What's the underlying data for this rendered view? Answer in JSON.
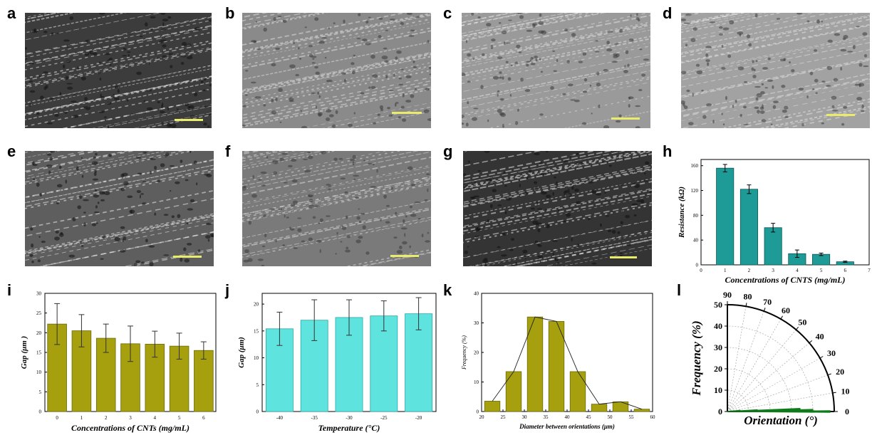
{
  "panels": {
    "a": {
      "letter": "a"
    },
    "b": {
      "letter": "b"
    },
    "c": {
      "letter": "c"
    },
    "d": {
      "letter": "d"
    },
    "e": {
      "letter": "e"
    },
    "f": {
      "letter": "f"
    },
    "g": {
      "letter": "g"
    },
    "h": {
      "letter": "h"
    },
    "i": {
      "letter": "i"
    },
    "j": {
      "letter": "j"
    },
    "k": {
      "letter": "k"
    },
    "l": {
      "letter": "l"
    }
  },
  "sem_tints": {
    "a": "#3c3c3c",
    "b": "#8a8a8a",
    "c": "#9a9a9a",
    "d": "#a2a2a2",
    "e": "#5e5e5e",
    "f": "#7a7a7a",
    "g": "#343434"
  },
  "colors": {
    "teal": "#1e9b96",
    "olive": "#a6a00e",
    "cyan": "#5fe3df",
    "green": "#0f7a1a"
  },
  "chart_data": [
    {
      "id": "h",
      "type": "bar",
      "x": [
        1,
        2,
        3,
        4,
        5,
        6
      ],
      "values": [
        156,
        122,
        60,
        18,
        17,
        5
      ],
      "errors": [
        6,
        7,
        7,
        6,
        2,
        1
      ],
      "xlim": [
        0,
        7
      ],
      "xticks": [
        "0",
        "1",
        "2",
        "3",
        "4",
        "5",
        "6",
        "7"
      ],
      "ylim": [
        0,
        170
      ],
      "yticks": [
        "0",
        "40",
        "80",
        "120",
        "160"
      ],
      "xlabel": "Concentrations of CNTS (mg/mL)",
      "ylabel": "Resistance (kΩ)",
      "color": "#1e9b96"
    },
    {
      "id": "i",
      "type": "bar",
      "categories": [
        "0",
        "1",
        "2",
        "3",
        "4",
        "5",
        "6"
      ],
      "values": [
        22.2,
        20.5,
        18.6,
        17.2,
        17.1,
        16.6,
        15.5
      ],
      "errors": [
        5.2,
        4.1,
        3.6,
        4.5,
        3.3,
        3.3,
        2.2
      ],
      "ylim": [
        0,
        30
      ],
      "yticks": [
        "0",
        "5",
        "10",
        "15",
        "20",
        "25",
        "30"
      ],
      "xlabel": "Concentrations of CNTs (mg/mL)",
      "ylabel": "Gap (μm )",
      "color": "#a6a00e"
    },
    {
      "id": "j",
      "type": "bar",
      "categories": [
        "-40",
        "-35",
        "-30",
        "-25",
        "-20"
      ],
      "values": [
        15.4,
        17.0,
        17.5,
        17.8,
        18.2
      ],
      "errors": [
        3.1,
        3.8,
        3.3,
        2.8,
        3.0
      ],
      "ylim": [
        0,
        22
      ],
      "yticks": [
        "0",
        "5",
        "10",
        "15",
        "20"
      ],
      "xlabel": "Temperature (°C)",
      "ylabel": "Gap (μm)",
      "color": "#5fe3df"
    },
    {
      "id": "k",
      "type": "bar",
      "x": [
        22.5,
        27.5,
        32.5,
        37.5,
        42.5,
        47.5,
        52.5,
        57.5
      ],
      "values": [
        3.5,
        13.5,
        32,
        30.5,
        13.5,
        2.5,
        3.3,
        0.8
      ],
      "xlim": [
        20,
        60
      ],
      "xticks": [
        "20",
        "25",
        "30",
        "35",
        "40",
        "45",
        "50",
        "55",
        "60"
      ],
      "ylim": [
        0,
        40
      ],
      "yticks": [
        "0",
        "10",
        "20",
        "30",
        "40"
      ],
      "xlabel": "Diameter between orientations (μm)",
      "ylabel": "Frequency (%)",
      "color": "#a6a00e"
    },
    {
      "id": "l",
      "type": "polar",
      "angles": [
        0,
        1,
        2,
        3,
        4,
        5,
        6,
        7,
        8
      ],
      "values": [
        48,
        40,
        34,
        14,
        3,
        6,
        2,
        1,
        1
      ],
      "rlim": [
        0,
        50
      ],
      "rticks": [
        "0",
        "10",
        "20",
        "30",
        "40",
        "50"
      ],
      "angle_ticks": [
        "0",
        "10",
        "20",
        "30",
        "40",
        "50",
        "60",
        "70",
        "80",
        "90"
      ],
      "xlabel": "Orientation (°)",
      "ylabel": "Frequency (%)",
      "color": "#0f7a1a"
    }
  ]
}
